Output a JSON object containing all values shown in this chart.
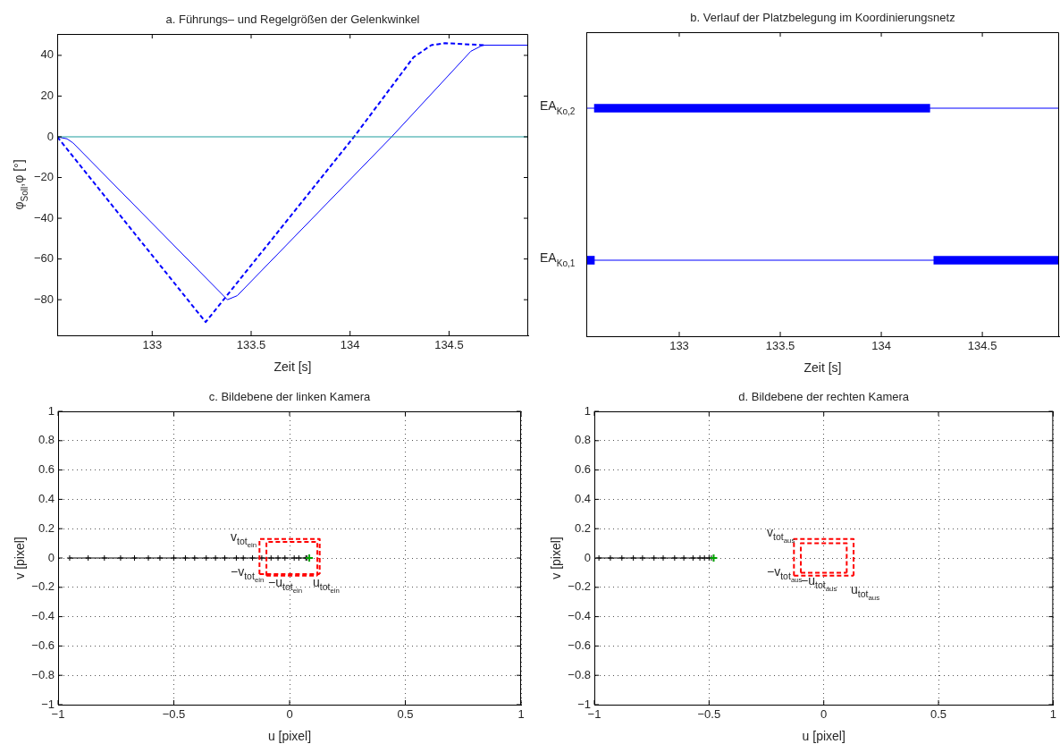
{
  "chart_data": [
    {
      "type": "line",
      "title": "a. Führungs– und Regelgrößen der Gelenkwinkel",
      "xlabel": "Zeit [s]",
      "ylabel": "φ$_{Soll}$,φ [°]",
      "xlim": [
        132.52,
        134.9
      ],
      "xticks": [
        133,
        133.5,
        134,
        134.5
      ],
      "ylim": [
        -97.5,
        50.5
      ],
      "yticks": [
        -80,
        -60,
        -40,
        -20,
        0,
        20,
        40
      ],
      "series": [
        {
          "color": "#0000ff",
          "line_style": "solid",
          "x": [
            132.52,
            132.57,
            132.6,
            133.37,
            133.38,
            133.43,
            134.21,
            134.61,
            134.67,
            134.9
          ],
          "values": [
            0,
            -1,
            -3,
            -79,
            -80,
            -78,
            0,
            42,
            45,
            45
          ]
        },
        {
          "color": "#0000ff",
          "line_style": "dashed",
          "x": [
            132.52,
            133.27,
            134.02,
            134.32,
            134.41,
            134.48,
            134.68
          ],
          "values": [
            0,
            -91,
            0,
            39,
            45,
            46,
            45
          ]
        },
        {
          "color": "#1f9f9f",
          "line_style": "solid",
          "x": [
            132.52,
            134.9
          ],
          "values": [
            0,
            0
          ]
        }
      ]
    },
    {
      "type": "bar",
      "orientation": "horizontal",
      "title": "b. Verlauf der Platzbelegung im Koordinierungsnetz",
      "xlabel": "Zeit [s]",
      "categories": [
        "EA$_{Ko,2}$",
        "EA$_{Ko,1}$"
      ],
      "xlim": [
        132.54,
        134.88
      ],
      "xticks": [
        133,
        133.5,
        134,
        134.5
      ],
      "series": [
        {
          "type": "bar",
          "color": "#0000ff",
          "base": [
            132.58,
            132.54
          ],
          "values": [
            1.66,
            0.04
          ]
        },
        {
          "type": "bar",
          "color": "#0000ff",
          "base": [
            null,
            134.26
          ],
          "values": [
            null,
            0.62
          ]
        }
      ],
      "ref_lines": [
        {
          "axis": "y",
          "value": "EA$_{Ko,2}$",
          "color": "#0000ff"
        },
        {
          "axis": "y",
          "value": "EA$_{Ko,1}$",
          "color": "#0000ff"
        }
      ]
    },
    {
      "type": "line",
      "title": "c. Bildebene der linken Kamera",
      "xlabel": "u [pixel]",
      "ylabel": "v [pixel]",
      "xlim": [
        -1,
        1
      ],
      "xticks": [
        -1,
        -0.5,
        0,
        0.5,
        1
      ],
      "ylim": [
        -1,
        1
      ],
      "yticks": [
        -1,
        -0.8,
        -0.6,
        -0.4,
        -0.2,
        0,
        0.2,
        0.4,
        0.6,
        0.8,
        1
      ],
      "grid": true,
      "series": [
        {
          "color": "#000000",
          "marker": "cross",
          "x": [
            -0.95,
            -0.87,
            -0.8,
            -0.73,
            -0.67,
            -0.61,
            -0.56,
            -0.5,
            -0.45,
            -0.41,
            -0.36,
            -0.32,
            -0.28,
            -0.23,
            -0.2,
            -0.16,
            -0.12,
            -0.08,
            -0.05,
            -0.02,
            0.02,
            0.04,
            0.07,
            0.075
          ],
          "values": [
            0,
            0,
            0,
            0,
            0,
            0,
            0,
            0,
            0,
            0,
            0,
            0,
            0,
            0,
            0,
            0,
            0,
            0,
            0,
            0,
            0,
            0,
            0,
            0
          ]
        },
        {
          "type": "scatter",
          "color": "#00a000",
          "marker": "cross",
          "x": [
            0.085
          ],
          "values": [
            0
          ]
        },
        {
          "color": "#ff0000",
          "marker": "none",
          "line_style": "dashed",
          "x": [
            -0.13,
            -0.13,
            0.13,
            0.13
          ],
          "values": [
            -0.11,
            0.13,
            0.13,
            -0.11
          ]
        },
        {
          "color": "#ff0000",
          "marker": "none",
          "line_style": "dashed",
          "x": [
            -0.13,
            0.13
          ],
          "values": [
            -0.11,
            -0.11
          ]
        },
        {
          "color": "#ff0000",
          "marker": "none",
          "line_style": "dashed",
          "x": [
            -0.1,
            -0.1,
            0.12,
            0.12
          ],
          "values": [
            -0.12,
            0.11,
            0.11,
            -0.12
          ]
        },
        {
          "color": "#ff0000",
          "marker": "none",
          "line_style": "dashed",
          "x": [
            -0.1,
            0.12
          ],
          "values": [
            -0.12,
            -0.12
          ]
        }
      ],
      "annotations": [
        "v$_{tot}$$_{ein}$",
        "−v$_{tot}$$_{ein}$",
        "−u$_{tot}$$_{ein}$",
        "u$_{tot}$$_{ein}$"
      ]
    },
    {
      "type": "line",
      "title": "d. Bildebene der rechten Kamera",
      "xlabel": "u [pixel]",
      "ylabel": "v [pixel]",
      "xlim": [
        -1,
        1
      ],
      "xticks": [
        -1,
        -0.5,
        0,
        0.5,
        1
      ],
      "ylim": [
        -1,
        1
      ],
      "yticks": [
        -1,
        -0.8,
        -0.6,
        -0.4,
        -0.2,
        0,
        0.2,
        0.4,
        0.6,
        0.8,
        1
      ],
      "grid": true,
      "series": [
        {
          "color": "#000000",
          "marker": "cross",
          "x": [
            -0.98,
            -0.93,
            -0.88,
            -0.83,
            -0.79,
            -0.74,
            -0.7,
            -0.65,
            -0.61,
            -0.57,
            -0.54,
            -0.52,
            -0.5,
            -0.49
          ],
          "values": [
            0,
            0,
            0,
            0,
            0,
            0,
            0,
            0,
            0,
            0,
            0,
            0,
            0,
            0
          ]
        },
        {
          "type": "scatter",
          "color": "#00a000",
          "marker": "cross",
          "x": [
            -0.48
          ],
          "values": [
            0
          ]
        },
        {
          "color": "#ff0000",
          "marker": "none",
          "line_style": "dashed",
          "x": [
            -0.13,
            -0.13,
            0.13,
            0.13
          ],
          "values": [
            -0.12,
            0.13,
            0.13,
            -0.12
          ]
        },
        {
          "color": "#ff0000",
          "marker": "none",
          "line_style": "dashed",
          "x": [
            -0.13,
            0.13
          ],
          "values": [
            -0.12,
            -0.12
          ]
        },
        {
          "color": "#ff0000",
          "marker": "none",
          "line_style": "dashed",
          "x": [
            -0.1,
            -0.1,
            0.1,
            0.1
          ],
          "values": [
            -0.1,
            0.1,
            0.1,
            -0.1
          ]
        },
        {
          "color": "#ff0000",
          "marker": "none",
          "line_style": "dashed",
          "x": [
            -0.1,
            0.1
          ],
          "values": [
            -0.1,
            -0.1
          ]
        }
      ],
      "annotations": [
        "v$_{tot}$$_{aus}$",
        "−v$_{tot}$$_{aus}$",
        "−u$_{tot}$$_{aus}$",
        "u$_{tot}$$_{aus}$"
      ]
    }
  ]
}
